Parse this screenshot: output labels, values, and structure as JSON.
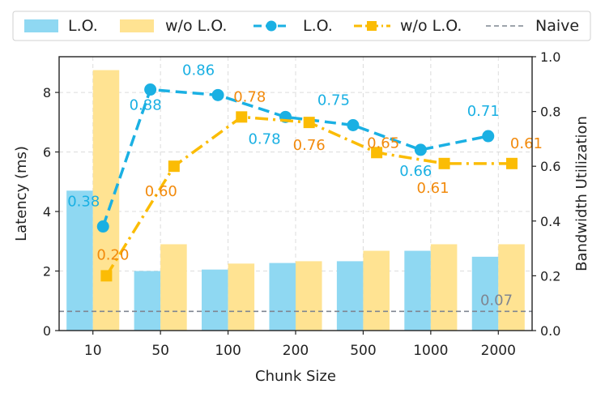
{
  "chart_data": {
    "type": "bar+line",
    "categories": [
      "10",
      "50",
      "100",
      "200",
      "500",
      "1000",
      "2000"
    ],
    "xlabel": "Chunk Size",
    "ylabel_left": "Latency (ms)",
    "ylabel_right": "Bandwidth Utilization",
    "ylim_left": [
      0,
      9.2
    ],
    "ylim_right": [
      0,
      1.0
    ],
    "yticks_left": [
      "0",
      "2",
      "4",
      "6",
      "8"
    ],
    "yticks_right": [
      "0.0",
      "0.2",
      "0.4",
      "0.6",
      "0.8",
      "1.0"
    ],
    "grid": true,
    "legend_position": "top",
    "bars": [
      {
        "name": "L.O.",
        "color": "#8fd8f2",
        "values": [
          4.7,
          2.0,
          2.05,
          2.27,
          2.33,
          2.68,
          2.48
        ]
      },
      {
        "name": "w/o L.O.",
        "color": "#ffe392",
        "values": [
          8.75,
          2.9,
          2.25,
          2.33,
          2.68,
          2.9,
          2.9
        ]
      }
    ],
    "lines": [
      {
        "name": "L.O.",
        "color": "#1ab0e3",
        "marker": "circle",
        "style": "dashed",
        "x": [
          0.15,
          0.85,
          1.85,
          2.85,
          3.85,
          4.85,
          5.85
        ],
        "values": [
          0.38,
          0.88,
          0.86,
          0.78,
          0.75,
          0.66,
          0.71
        ],
        "labels": [
          "0.38",
          "0.88",
          "0.86",
          "0.78",
          "0.75",
          "0.66",
          "0.71"
        ]
      },
      {
        "name": "w/o L.O.",
        "color": "#fbbc05",
        "label_color": "#f28a0c",
        "marker": "square",
        "style": "dashdot",
        "x": [
          0.2,
          1.2,
          2.2,
          3.2,
          4.2,
          5.2,
          6.2
        ],
        "values": [
          0.2,
          0.6,
          0.78,
          0.76,
          0.65,
          0.61,
          0.61
        ],
        "labels": [
          "0.20",
          "0.60",
          "0.78",
          "0.76",
          "0.65",
          "0.61",
          "0.61"
        ]
      }
    ],
    "baseline": {
      "name": "Naive",
      "value": 0.07,
      "label": "0.07",
      "color": "#7f8591"
    }
  }
}
